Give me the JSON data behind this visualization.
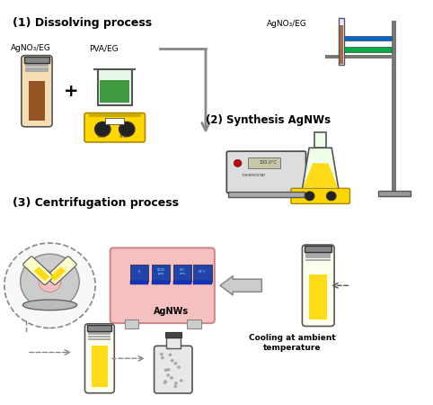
{
  "title": "",
  "background_color": "#ffffff",
  "figsize": [
    4.82,
    4.5
  ],
  "dpi": 100,
  "sections": {
    "dissolving": {
      "label": "(1) Dissolving process",
      "agno3_label": "AgNO₃/EG",
      "pva_label": "PVA/EG"
    },
    "synthesis": {
      "label": "(2) Synthesis AgNWs",
      "agno3_label": "AgNO₃/EG"
    },
    "centrifugation": {
      "label": "(3) Centrifugation process",
      "cooling_label": "Cooling at ambient\ntemperature",
      "agnws_label": "AgNWs"
    }
  },
  "colors": {
    "brown_liquid": "#8B4513",
    "green_solution": "#228B22",
    "yellow_solution": "#FFD700",
    "hot_plate_color": "#FFD700",
    "centrifuge_color": "#f5c0c0",
    "text_color": "#000000",
    "arrow_gray": "#aaaaaa",
    "dashed_line": "#888888"
  }
}
